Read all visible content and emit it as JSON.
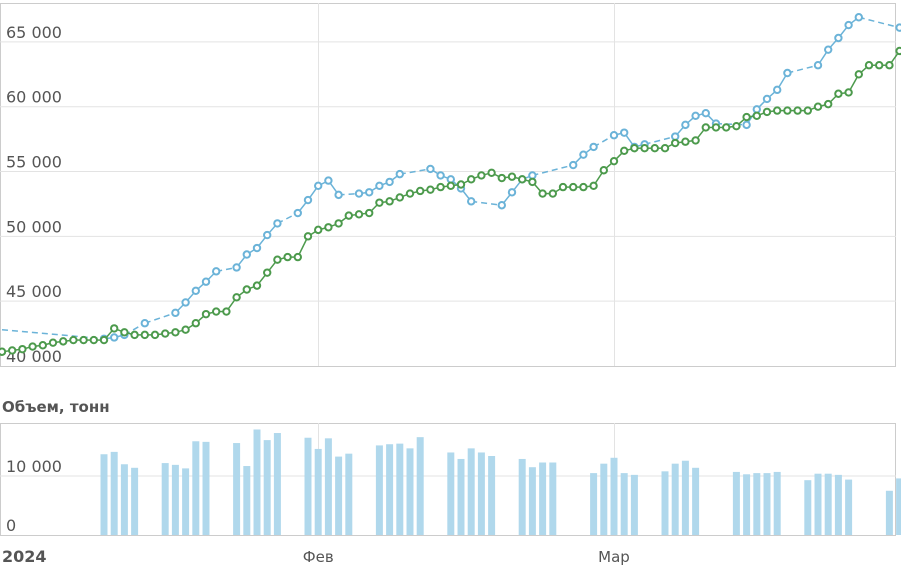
{
  "chart_data": [
    {
      "type": "line",
      "ylim": [
        40000,
        68000
      ],
      "yticks": [
        40000,
        45000,
        50000,
        55000,
        60000,
        65000
      ],
      "ytick_labels": [
        "40 000",
        "45 000",
        "50 000",
        "55 000",
        "60 000",
        "65 000"
      ],
      "grid": true,
      "legend": "none",
      "series": [
        {
          "color": "#6bb3d8",
          "style": "dashed-with-markers",
          "x": [
            "2024-01-01",
            "2024-01-11",
            "2024-01-12",
            "2024-01-13",
            "2024-01-15",
            "2024-01-18",
            "2024-01-19",
            "2024-01-20",
            "2024-01-21",
            "2024-01-22",
            "2024-01-24",
            "2024-01-25",
            "2024-01-26",
            "2024-01-27",
            "2024-01-28",
            "2024-01-30",
            "2024-01-31",
            "2024-02-01",
            "2024-02-02",
            "2024-02-03",
            "2024-02-05",
            "2024-02-06",
            "2024-02-07",
            "2024-02-08",
            "2024-02-09",
            "2024-02-12",
            "2024-02-13",
            "2024-02-14",
            "2024-02-15",
            "2024-02-16",
            "2024-02-19",
            "2024-02-20",
            "2024-02-21",
            "2024-02-22",
            "2024-02-26",
            "2024-02-27",
            "2024-02-28",
            "2024-03-01",
            "2024-03-02",
            "2024-03-03",
            "2024-03-04",
            "2024-03-07",
            "2024-03-08",
            "2024-03-09",
            "2024-03-10",
            "2024-03-11",
            "2024-03-14",
            "2024-03-15",
            "2024-03-16",
            "2024-03-17",
            "2024-03-18",
            "2024-03-21",
            "2024-03-22",
            "2024-03-23",
            "2024-03-24",
            "2024-03-25",
            "2024-03-29",
            "2024-03-30"
          ],
          "y": [
            42800,
            42100,
            42200,
            42400,
            43300,
            44100,
            44900,
            45800,
            46500,
            47300,
            47600,
            48600,
            49100,
            50100,
            51000,
            51800,
            52800,
            53900,
            54300,
            53200,
            53300,
            53400,
            53900,
            54200,
            54800,
            55200,
            54700,
            54400,
            53700,
            52700,
            52400,
            53400,
            54400,
            54700,
            55500,
            56300,
            56900,
            57800,
            58000,
            56900,
            57100,
            57700,
            58600,
            59300,
            59500,
            58700,
            58600,
            59800,
            60600,
            61300,
            62600,
            63200,
            64400,
            65300,
            66300,
            66900,
            66100,
            65200
          ]
        },
        {
          "color": "#4c9a4c",
          "style": "solid-with-markers",
          "x": [
            "2024-01-01",
            "2024-01-02",
            "2024-01-03",
            "2024-01-04",
            "2024-01-05",
            "2024-01-06",
            "2024-01-07",
            "2024-01-08",
            "2024-01-09",
            "2024-01-10",
            "2024-01-11",
            "2024-01-12",
            "2024-01-13",
            "2024-01-14",
            "2024-01-15",
            "2024-01-16",
            "2024-01-17",
            "2024-01-18",
            "2024-01-19",
            "2024-01-20",
            "2024-01-21",
            "2024-01-22",
            "2024-01-23",
            "2024-01-24",
            "2024-01-25",
            "2024-01-26",
            "2024-01-27",
            "2024-01-28",
            "2024-01-29",
            "2024-01-30",
            "2024-01-31",
            "2024-02-01",
            "2024-02-02",
            "2024-02-03",
            "2024-02-04",
            "2024-02-05",
            "2024-02-06",
            "2024-02-07",
            "2024-02-08",
            "2024-02-09",
            "2024-02-10",
            "2024-02-11",
            "2024-02-12",
            "2024-02-13",
            "2024-02-14",
            "2024-02-15",
            "2024-02-16",
            "2024-02-17",
            "2024-02-18",
            "2024-02-19",
            "2024-02-20",
            "2024-02-21",
            "2024-02-22",
            "2024-02-23",
            "2024-02-24",
            "2024-02-25",
            "2024-02-26",
            "2024-02-27",
            "2024-02-28",
            "2024-02-29",
            "2024-03-01",
            "2024-03-02",
            "2024-03-03",
            "2024-03-04",
            "2024-03-05",
            "2024-03-06",
            "2024-03-07",
            "2024-03-08",
            "2024-03-09",
            "2024-03-10",
            "2024-03-11",
            "2024-03-12",
            "2024-03-13",
            "2024-03-14",
            "2024-03-15",
            "2024-03-16",
            "2024-03-17",
            "2024-03-18",
            "2024-03-19",
            "2024-03-20",
            "2024-03-21",
            "2024-03-22",
            "2024-03-23",
            "2024-03-24",
            "2024-03-25",
            "2024-03-26",
            "2024-03-27",
            "2024-03-28",
            "2024-03-29",
            "2024-03-30"
          ],
          "y": [
            41100,
            41200,
            41300,
            41500,
            41600,
            41800,
            41900,
            42000,
            42000,
            42000,
            42000,
            42900,
            42600,
            42400,
            42400,
            42400,
            42500,
            42600,
            42800,
            43300,
            44000,
            44200,
            44200,
            45300,
            45900,
            46200,
            47200,
            48200,
            48400,
            48400,
            50000,
            50500,
            50700,
            51000,
            51600,
            51700,
            51800,
            52600,
            52700,
            53000,
            53300,
            53500,
            53600,
            53800,
            53900,
            54000,
            54400,
            54700,
            54900,
            54500,
            54600,
            54400,
            54200,
            53300,
            53300,
            53800,
            53800,
            53800,
            53900,
            55100,
            55800,
            56600,
            56800,
            56800,
            56800,
            56800,
            57200,
            57300,
            57400,
            58400,
            58400,
            58400,
            58500,
            59200,
            59300,
            59600,
            59700,
            59700,
            59700,
            59700,
            60000,
            60200,
            61000,
            61100,
            62500,
            63200,
            63200,
            63200,
            64300,
            65200
          ]
        }
      ]
    },
    {
      "type": "bar",
      "title": "Объем, тонн",
      "ylim": [
        0,
        19000
      ],
      "yticks": [
        0,
        10000
      ],
      "ytick_labels": [
        "0",
        "10 000"
      ],
      "color": "#b0d8ec",
      "x": [
        "2024-01-11",
        "2024-01-12",
        "2024-01-13",
        "2024-01-14",
        "2024-01-17",
        "2024-01-18",
        "2024-01-19",
        "2024-01-20",
        "2024-01-21",
        "2024-01-24",
        "2024-01-25",
        "2024-01-26",
        "2024-01-27",
        "2024-01-28",
        "2024-01-31",
        "2024-02-01",
        "2024-02-02",
        "2024-02-03",
        "2024-02-04",
        "2024-02-07",
        "2024-02-08",
        "2024-02-09",
        "2024-02-10",
        "2024-02-11",
        "2024-02-14",
        "2024-02-15",
        "2024-02-16",
        "2024-02-17",
        "2024-02-18",
        "2024-02-21",
        "2024-02-22",
        "2024-02-23",
        "2024-02-24",
        "2024-02-28",
        "2024-02-29",
        "2024-03-01",
        "2024-03-02",
        "2024-03-03",
        "2024-03-06",
        "2024-03-07",
        "2024-03-08",
        "2024-03-09",
        "2024-03-13",
        "2024-03-14",
        "2024-03-15",
        "2024-03-16",
        "2024-03-17",
        "2024-03-20",
        "2024-03-21",
        "2024-03-22",
        "2024-03-23",
        "2024-03-24",
        "2024-03-28",
        "2024-03-29"
      ],
      "values": [
        13700,
        14100,
        12000,
        11400,
        12200,
        11900,
        11300,
        15900,
        15800,
        15600,
        11700,
        17900,
        16100,
        17300,
        16500,
        14600,
        16400,
        13300,
        13800,
        15200,
        15400,
        15500,
        14700,
        16600,
        14000,
        12900,
        14700,
        14000,
        13400,
        12900,
        11500,
        12300,
        12300,
        10500,
        12100,
        13100,
        10500,
        10200,
        10800,
        12100,
        12600,
        11400,
        10700,
        10300,
        10500,
        10500,
        10700,
        9300,
        10400,
        10400,
        10200,
        9400,
        7500,
        9600
      ]
    }
  ],
  "x_axis": {
    "year_label": "2024",
    "months": [
      {
        "date": "2024-02-01",
        "label": "Фев"
      },
      {
        "date": "2024-03-01",
        "label": "Мар"
      }
    ]
  }
}
